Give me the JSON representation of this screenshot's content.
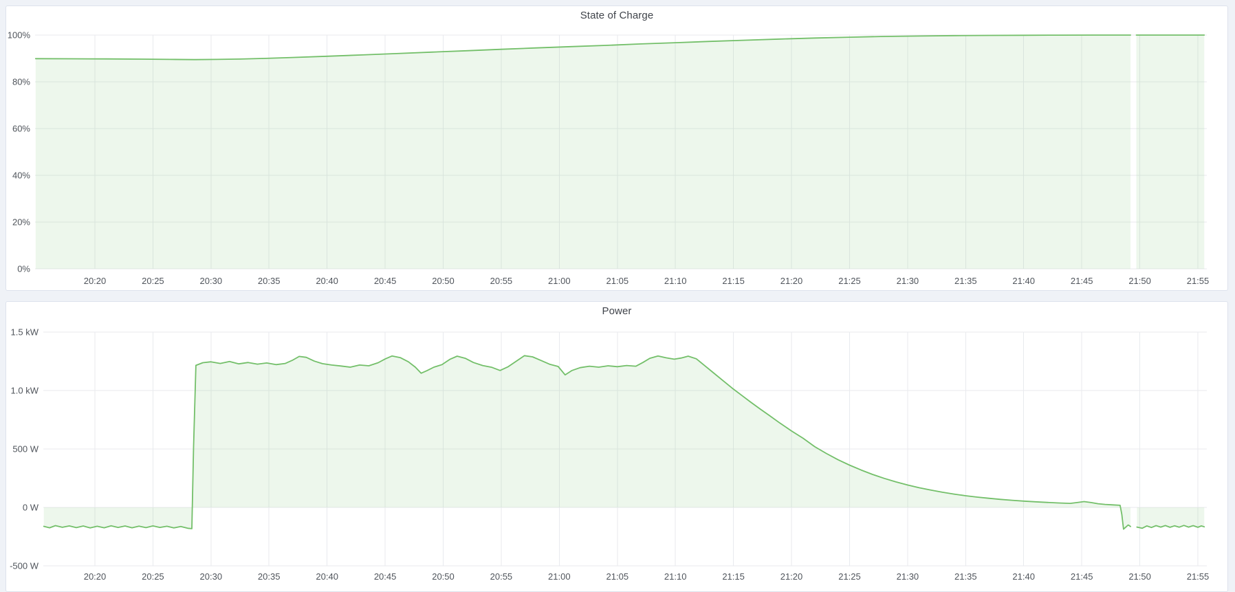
{
  "panels": [
    {
      "title": "State of Charge"
    },
    {
      "title": "Power"
    }
  ],
  "colors": {
    "page_bg": "#eff2f7",
    "panel_bg": "#ffffff",
    "panel_border": "#dde2ec",
    "grid": "#e8eaee",
    "tick_text": "#4f545b",
    "title_text": "#3f434a",
    "series_line": "#73bf69",
    "series_fill": "rgba(115,191,105,0.13)"
  },
  "chart_data": [
    {
      "type": "area",
      "title": "State of Charge",
      "unit": "percent",
      "grid": true,
      "legend": "none",
      "line_color": "#73bf69",
      "fill_color": "rgba(115,191,105,0.13)",
      "xlim_minutes": [
        1214.85,
        1315.77
      ],
      "x_ticks": {
        "minutes": [
          1220,
          1225,
          1230,
          1235,
          1240,
          1245,
          1250,
          1255,
          1260,
          1265,
          1270,
          1275,
          1280,
          1285,
          1290,
          1295,
          1300,
          1305,
          1310,
          1315
        ],
        "labels": [
          "20:20",
          "20:25",
          "20:30",
          "20:35",
          "20:40",
          "20:45",
          "20:50",
          "20:55",
          "21:00",
          "21:05",
          "21:10",
          "21:15",
          "21:20",
          "21:25",
          "21:30",
          "21:35",
          "21:40",
          "21:45",
          "21:50",
          "21:55"
        ]
      },
      "ylim": [
        0,
        100
      ],
      "y_ticks": {
        "values": [
          0,
          20,
          40,
          60,
          80,
          100
        ],
        "labels": [
          "0%",
          "20%",
          "40%",
          "60%",
          "80%",
          "100%"
        ]
      },
      "series": [
        {
          "name": "State of Charge",
          "segments": [
            [
              [
                1214.9,
                89.9
              ],
              [
                1218,
                89.85
              ],
              [
                1221,
                89.8
              ],
              [
                1224,
                89.7
              ],
              [
                1226.5,
                89.6
              ],
              [
                1228.6,
                89.5
              ],
              [
                1230.5,
                89.6
              ],
              [
                1232.5,
                89.75
              ],
              [
                1234.5,
                90.0
              ],
              [
                1237,
                90.4
              ],
              [
                1240,
                90.95
              ],
              [
                1243,
                91.5
              ],
              [
                1246,
                92.1
              ],
              [
                1249,
                92.7
              ],
              [
                1252,
                93.3
              ],
              [
                1255,
                93.9
              ],
              [
                1258,
                94.5
              ],
              [
                1261,
                95.05
              ],
              [
                1264,
                95.6
              ],
              [
                1267,
                96.2
              ],
              [
                1270,
                96.75
              ],
              [
                1273,
                97.3
              ],
              [
                1276,
                97.8
              ],
              [
                1279,
                98.3
              ],
              [
                1282,
                98.75
              ],
              [
                1285,
                99.1
              ],
              [
                1288,
                99.4
              ],
              [
                1291,
                99.6
              ],
              [
                1294,
                99.75
              ],
              [
                1297,
                99.85
              ],
              [
                1300,
                99.92
              ],
              [
                1303,
                99.96
              ],
              [
                1306,
                99.99
              ],
              [
                1309.2,
                100
              ]
            ],
            [
              [
                1309.7,
                100
              ],
              [
                1311,
                100
              ],
              [
                1313,
                100
              ],
              [
                1315.55,
                100
              ]
            ]
          ]
        }
      ]
    },
    {
      "type": "area",
      "title": "Power",
      "unit": "watt",
      "grid": true,
      "legend": "none",
      "line_color": "#73bf69",
      "fill_color": "rgba(115,191,105,0.13)",
      "xlim_minutes": [
        1215.56,
        1315.77
      ],
      "x_ticks": {
        "minutes": [
          1220,
          1225,
          1230,
          1235,
          1240,
          1245,
          1250,
          1255,
          1260,
          1265,
          1270,
          1275,
          1280,
          1285,
          1290,
          1295,
          1300,
          1305,
          1310,
          1315
        ],
        "labels": [
          "20:20",
          "20:25",
          "20:30",
          "20:35",
          "20:40",
          "20:45",
          "20:50",
          "20:55",
          "21:00",
          "21:05",
          "21:10",
          "21:15",
          "21:20",
          "21:25",
          "21:30",
          "21:35",
          "21:40",
          "21:45",
          "21:50",
          "21:55"
        ]
      },
      "ylim": [
        -500,
        1500
      ],
      "y_ticks": {
        "values": [
          -500,
          0,
          500,
          1000,
          1500
        ],
        "labels": [
          "-500 W",
          "0 W",
          "500 W",
          "1.0 kW",
          "1.5 kW"
        ]
      },
      "series": [
        {
          "name": "Power",
          "segments": [
            [
              [
                1215.6,
                -162
              ],
              [
                1216.1,
                -174
              ],
              [
                1216.6,
                -156
              ],
              [
                1217.2,
                -170
              ],
              [
                1217.8,
                -158
              ],
              [
                1218.4,
                -173
              ],
              [
                1219.0,
                -159
              ],
              [
                1219.6,
                -175
              ],
              [
                1220.2,
                -161
              ],
              [
                1220.8,
                -174
              ],
              [
                1221.4,
                -157
              ],
              [
                1222.0,
                -171
              ],
              [
                1222.6,
                -159
              ],
              [
                1223.2,
                -174
              ],
              [
                1223.8,
                -160
              ],
              [
                1224.4,
                -173
              ],
              [
                1225.0,
                -158
              ],
              [
                1225.6,
                -171
              ],
              [
                1226.2,
                -161
              ],
              [
                1226.8,
                -175
              ],
              [
                1227.4,
                -163
              ],
              [
                1228.0,
                -178
              ],
              [
                1228.35,
                -182
              ],
              [
                1228.5,
                520
              ],
              [
                1228.7,
                1215
              ],
              [
                1229.3,
                1238
              ],
              [
                1230.0,
                1246
              ],
              [
                1230.8,
                1232
              ],
              [
                1231.6,
                1248
              ],
              [
                1232.4,
                1228
              ],
              [
                1233.2,
                1240
              ],
              [
                1234.0,
                1226
              ],
              [
                1234.8,
                1236
              ],
              [
                1235.6,
                1222
              ],
              [
                1236.4,
                1232
              ],
              [
                1237.0,
                1258
              ],
              [
                1237.6,
                1292
              ],
              [
                1238.2,
                1284
              ],
              [
                1238.9,
                1252
              ],
              [
                1239.6,
                1230
              ],
              [
                1240.4,
                1218
              ],
              [
                1241.2,
                1210
              ],
              [
                1242.0,
                1200
              ],
              [
                1242.8,
                1218
              ],
              [
                1243.6,
                1212
              ],
              [
                1244.4,
                1238
              ],
              [
                1245.0,
                1270
              ],
              [
                1245.6,
                1296
              ],
              [
                1246.3,
                1282
              ],
              [
                1247.0,
                1246
              ],
              [
                1247.6,
                1200
              ],
              [
                1248.1,
                1148
              ],
              [
                1248.6,
                1170
              ],
              [
                1249.2,
                1200
              ],
              [
                1249.9,
                1222
              ],
              [
                1250.6,
                1268
              ],
              [
                1251.2,
                1294
              ],
              [
                1251.9,
                1276
              ],
              [
                1252.6,
                1240
              ],
              [
                1253.4,
                1214
              ],
              [
                1254.2,
                1198
              ],
              [
                1254.9,
                1172
              ],
              [
                1255.6,
                1204
              ],
              [
                1256.3,
                1252
              ],
              [
                1257.0,
                1298
              ],
              [
                1257.7,
                1288
              ],
              [
                1258.4,
                1258
              ],
              [
                1259.2,
                1224
              ],
              [
                1259.9,
                1206
              ],
              [
                1260.5,
                1134
              ],
              [
                1261.1,
                1172
              ],
              [
                1261.8,
                1196
              ],
              [
                1262.6,
                1208
              ],
              [
                1263.4,
                1200
              ],
              [
                1264.2,
                1212
              ],
              [
                1265.0,
                1204
              ],
              [
                1265.8,
                1214
              ],
              [
                1266.6,
                1208
              ],
              [
                1267.2,
                1240
              ],
              [
                1267.8,
                1276
              ],
              [
                1268.5,
                1296
              ],
              [
                1269.2,
                1280
              ],
              [
                1269.9,
                1268
              ],
              [
                1270.5,
                1278
              ],
              [
                1271.1,
                1294
              ],
              [
                1271.8,
                1272
              ],
              [
                1272.5,
                1215
              ],
              [
                1273.3,
                1150
              ],
              [
                1274.1,
                1085
              ],
              [
                1274.9,
                1020
              ],
              [
                1275.7,
                960
              ],
              [
                1276.5,
                900
              ],
              [
                1277.3,
                842
              ],
              [
                1278.1,
                786
              ],
              [
                1279.0,
                722
              ],
              [
                1280.0,
                655
              ],
              [
                1281.0,
                592
              ],
              [
                1282.0,
                520
              ],
              [
                1283.0,
                462
              ],
              [
                1284.0,
                408
              ],
              [
                1285.0,
                362
              ],
              [
                1286.0,
                320
              ],
              [
                1287.0,
                282
              ],
              [
                1288.0,
                248
              ],
              [
                1289.0,
                218
              ],
              [
                1290.0,
                192
              ],
              [
                1291.0,
                168
              ],
              [
                1292.0,
                148
              ],
              [
                1293.0,
                130
              ],
              [
                1294.0,
                114
              ],
              [
                1295.0,
                100
              ],
              [
                1296.0,
                88
              ],
              [
                1297.0,
                78
              ],
              [
                1298.0,
                69
              ],
              [
                1299.0,
                61
              ],
              [
                1300.0,
                54
              ],
              [
                1301.0,
                48
              ],
              [
                1302.0,
                43
              ],
              [
                1303.0,
                38
              ],
              [
                1304.0,
                35
              ],
              [
                1304.6,
                42
              ],
              [
                1305.2,
                50
              ],
              [
                1305.8,
                42
              ],
              [
                1306.4,
                32
              ],
              [
                1307.0,
                26
              ],
              [
                1307.7,
                22
              ],
              [
                1308.3,
                18
              ],
              [
                1308.45,
                -60
              ],
              [
                1308.6,
                -186
              ],
              [
                1308.8,
                -168
              ],
              [
                1309.0,
                -150
              ],
              [
                1309.2,
                -163
              ]
            ],
            [
              [
                1309.75,
                -168
              ],
              [
                1310.2,
                -178
              ],
              [
                1310.6,
                -158
              ],
              [
                1311.0,
                -172
              ],
              [
                1311.4,
                -156
              ],
              [
                1311.8,
                -168
              ],
              [
                1312.2,
                -155
              ],
              [
                1312.6,
                -170
              ],
              [
                1313.0,
                -157
              ],
              [
                1313.4,
                -169
              ],
              [
                1313.8,
                -154
              ],
              [
                1314.2,
                -168
              ],
              [
                1314.6,
                -156
              ],
              [
                1315.0,
                -170
              ],
              [
                1315.3,
                -158
              ],
              [
                1315.55,
                -166
              ]
            ]
          ]
        }
      ]
    }
  ]
}
